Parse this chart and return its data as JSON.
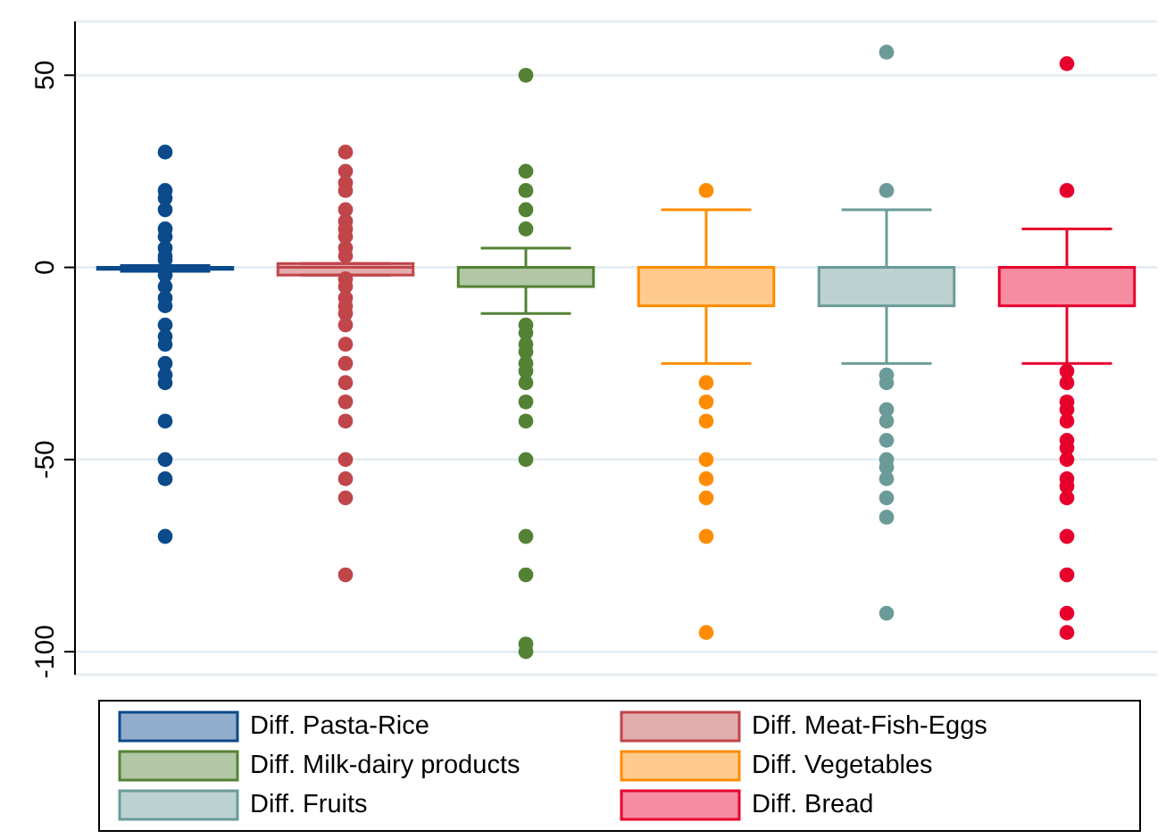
{
  "chart_data": {
    "type": "box",
    "categories": [
      null,
      null,
      null,
      null,
      null,
      null
    ],
    "ylim": [
      -106,
      64
    ],
    "yticks": [
      -100,
      -50,
      0,
      50
    ],
    "grid": "y",
    "legend": "bottom",
    "marker": "circle",
    "series": [
      {
        "name": "Diff. Pasta-Rice",
        "color": "#0b4a8b",
        "boxes": [
          {
            "low": -1,
            "q1": -0.5,
            "median": 0,
            "q3": 0,
            "high": 0.5,
            "outliers": [
              30,
              20,
              18,
              15,
              10,
              8,
              5,
              3,
              2,
              -2,
              -5,
              -8,
              -10,
              -15,
              -18,
              -20,
              -25,
              -28,
              -30,
              -40,
              -50,
              -55,
              -70
            ]
          },
          null,
          null,
          null,
          null,
          null
        ]
      },
      {
        "name": "Diff. Meat-Fish-Eggs",
        "color": "#c0464a",
        "boxes": [
          null,
          {
            "low": -2,
            "q1": -2,
            "median": 0,
            "q3": 1,
            "high": 1,
            "outliers": [
              30,
              25,
              22,
              20,
              15,
              12,
              10,
              8,
              5,
              3,
              -3,
              -5,
              -8,
              -10,
              -12,
              -15,
              -20,
              -25,
              -30,
              -35,
              -40,
              -50,
              -55,
              -60,
              -80
            ]
          },
          null,
          null,
          null,
          null
        ]
      },
      {
        "name": "Diff. Milk-dairy products",
        "color": "#548235",
        "boxes": [
          null,
          null,
          {
            "low": -12,
            "q1": -5,
            "median": 0,
            "q3": 0,
            "high": 5,
            "outliers": [
              50,
              25,
              20,
              15,
              10,
              -15,
              -17,
              -20,
              -22,
              -25,
              -27,
              -30,
              -35,
              -40,
              -50,
              -70,
              -80,
              -98,
              -100
            ]
          },
          null,
          null,
          null
        ]
      },
      {
        "name": "Diff. Vegetables",
        "color": "#ff8c00",
        "boxes": [
          null,
          null,
          null,
          {
            "low": -25,
            "q1": -10,
            "median": 0,
            "q3": 0,
            "high": 15,
            "outliers": [
              20,
              -30,
              -35,
              -40,
              -50,
              -55,
              -60,
              -70,
              -95
            ]
          },
          null,
          null
        ]
      },
      {
        "name": "Diff. Fruits",
        "color": "#6b9b98",
        "boxes": [
          null,
          null,
          null,
          null,
          {
            "low": -25,
            "q1": -10,
            "median": 0,
            "q3": 0,
            "high": 15,
            "outliers": [
              56,
              20,
              -28,
              -30,
              -37,
              -40,
              -45,
              -50,
              -52,
              -55,
              -60,
              -65,
              -90
            ]
          },
          null
        ]
      },
      {
        "name": "Diff. Bread",
        "color": "#e8002d",
        "boxes": [
          null,
          null,
          null,
          null,
          null,
          {
            "low": -25,
            "q1": -10,
            "median": 0,
            "q3": 0,
            "high": 10,
            "outliers": [
              53,
              20,
              -27,
              -30,
              -35,
              -37,
              -40,
              -45,
              -47,
              -50,
              -55,
              -57,
              -60,
              -70,
              -80,
              -90,
              -95
            ]
          }
        ]
      }
    ]
  }
}
